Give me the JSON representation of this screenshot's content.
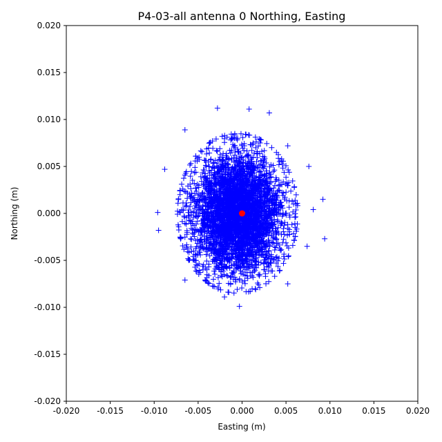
{
  "chart_data": {
    "type": "scatter",
    "title": "P4-03-all antenna 0 Northing, Easting",
    "xlabel": "Easting (m)",
    "ylabel": "Northing (m)",
    "xlim": [
      -0.02,
      0.02
    ],
    "ylim": [
      -0.02,
      0.02
    ],
    "xticks": [
      "-0.020",
      "-0.015",
      "-0.010",
      "-0.005",
      "0.000",
      "0.005",
      "0.010",
      "0.015",
      "0.020"
    ],
    "yticks": [
      "-0.020",
      "-0.015",
      "-0.010",
      "-0.005",
      "0.000",
      "0.005",
      "0.010",
      "0.015",
      "0.020"
    ],
    "grid": false,
    "colors": {
      "scatter": "#0000ff",
      "center": "#ff0000"
    },
    "center_point": {
      "x": 0.0,
      "y": 0.0
    },
    "cloud": {
      "x_mean": -0.0005,
      "y_mean": 0.0,
      "x_std": 0.0025,
      "y_std": 0.0031,
      "count": 4000
    },
    "outliers": [
      {
        "x": -0.0028,
        "y": 0.0112
      },
      {
        "x": 0.0008,
        "y": 0.0111
      },
      {
        "x": 0.0031,
        "y": 0.0107
      },
      {
        "x": -0.0065,
        "y": 0.0089
      },
      {
        "x": -0.0088,
        "y": 0.0047
      },
      {
        "x": 0.0092,
        "y": 0.0015
      },
      {
        "x": 0.0094,
        "y": -0.0027
      },
      {
        "x": -0.0096,
        "y": 0.0001
      },
      {
        "x": -0.0095,
        "y": -0.0018
      },
      {
        "x": -0.0003,
        "y": -0.0099
      },
      {
        "x": -0.002,
        "y": -0.0089
      },
      {
        "x": 0.0074,
        "y": -0.0035
      },
      {
        "x": -0.0065,
        "y": -0.0071
      },
      {
        "x": 0.0052,
        "y": -0.0075
      },
      {
        "x": 0.0076,
        "y": 0.005
      },
      {
        "x": 0.0052,
        "y": 0.0072
      },
      {
        "x": 0.0081,
        "y": 0.0004
      }
    ]
  }
}
